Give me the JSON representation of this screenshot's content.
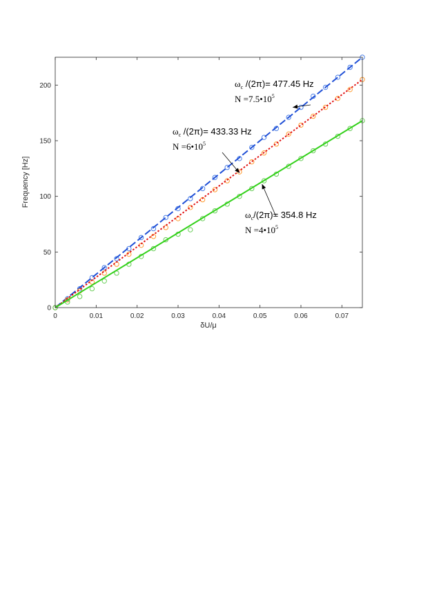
{
  "chart_data": {
    "type": "line",
    "xlabel": "δU/μ",
    "ylabel": "Frequency [Hz]",
    "xlim": [
      0,
      0.075
    ],
    "ylim": [
      0,
      225
    ],
    "xticks": [
      "0",
      "0.01",
      "0.02",
      "0.03",
      "0.04",
      "0.05",
      "0.06",
      "0.07"
    ],
    "yticks": [
      "0",
      "50",
      "100",
      "150",
      "200"
    ],
    "grid": false,
    "series": [
      {
        "color": "#1f4fd6",
        "marker_color": "#4a7ee6",
        "line_style": "dashed",
        "fit_line": [
          [
            0,
            0
          ],
          [
            0.075,
            225
          ]
        ],
        "x": [
          0.0,
          0.003,
          0.006,
          0.009,
          0.012,
          0.015,
          0.018,
          0.021,
          0.024,
          0.027,
          0.03,
          0.033,
          0.036,
          0.039,
          0.042,
          0.045,
          0.048,
          0.051,
          0.054,
          0.057,
          0.06,
          0.063,
          0.066,
          0.069,
          0.072,
          0.075
        ],
        "y": [
          0,
          8,
          17,
          27,
          36,
          44,
          53,
          63,
          71,
          81,
          89,
          98,
          107,
          117,
          126,
          134,
          144,
          153,
          161,
          171,
          180,
          190,
          198,
          207,
          216,
          225
        ]
      },
      {
        "color": "#e01010",
        "marker_color": "#ff9a2e",
        "line_style": "dotted",
        "fit_line": [
          [
            0,
            0
          ],
          [
            0.075,
            205
          ]
        ],
        "x": [
          0.0,
          0.003,
          0.006,
          0.009,
          0.012,
          0.015,
          0.018,
          0.021,
          0.024,
          0.027,
          0.03,
          0.033,
          0.036,
          0.039,
          0.042,
          0.045,
          0.048,
          0.051,
          0.054,
          0.057,
          0.06,
          0.063,
          0.066,
          0.069,
          0.072,
          0.075
        ],
        "y": [
          0,
          7,
          15,
          23,
          31,
          39,
          48,
          56,
          64,
          72,
          80,
          90,
          97,
          106,
          114,
          122,
          131,
          139,
          147,
          156,
          164,
          172,
          180,
          188,
          196,
          205
        ]
      },
      {
        "color": "#33d11a",
        "marker_color": "#66cc55",
        "line_style": "solid",
        "fit_line": [
          [
            0,
            0
          ],
          [
            0.075,
            168
          ]
        ],
        "x": [
          0.0,
          0.003,
          0.006,
          0.009,
          0.012,
          0.015,
          0.018,
          0.021,
          0.024,
          0.027,
          0.03,
          0.033,
          0.036,
          0.039,
          0.042,
          0.045,
          0.048,
          0.051,
          0.054,
          0.057,
          0.06,
          0.063,
          0.066,
          0.069,
          0.072,
          0.075
        ],
        "y": [
          0,
          5,
          10,
          17,
          24,
          31,
          39,
          46,
          53,
          61,
          66,
          70,
          80,
          87,
          93,
          100,
          107,
          114,
          120,
          127,
          134,
          141,
          147,
          154,
          161,
          168
        ]
      }
    ],
    "annotations": [
      {
        "omega": "ω",
        "sub": "c",
        "formula": " /(2π)= 477.45 Hz",
        "n_text": "N =7.5•10",
        "n_exp": "5",
        "arrow_to": [
          0.058,
          180
        ]
      },
      {
        "omega": "ω",
        "sub": "c",
        "formula": " /(2π)= 433.33 Hz",
        "n_text": "N =6•10",
        "n_exp": "5",
        "arrow_to": [
          0.045,
          121
        ]
      },
      {
        "omega": "ω",
        "sub": "c",
        "formula": "/(2π)= 354.8 Hz",
        "n_text": "N =4•10",
        "n_exp": "5",
        "arrow_to": [
          0.0505,
          111
        ]
      }
    ]
  }
}
